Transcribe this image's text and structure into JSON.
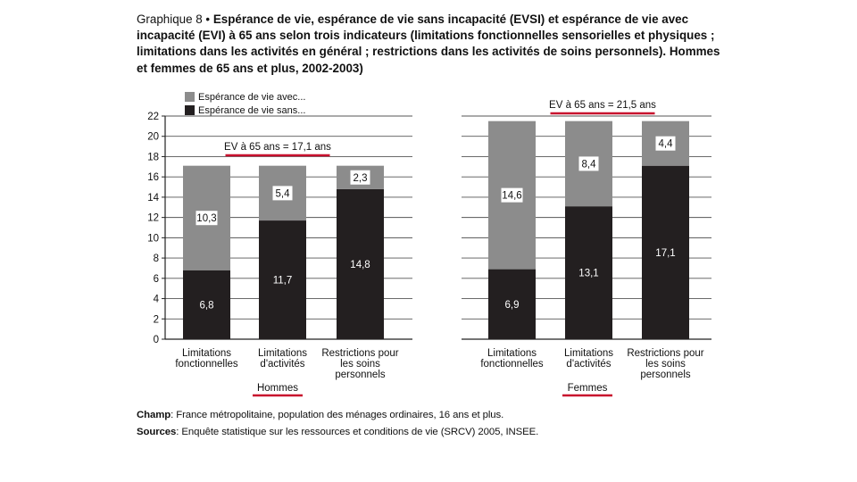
{
  "header": {
    "label": "Graphique 8 •",
    "text": "Espérance de vie, espérance de vie sans incapacité (EVSI) et espérance de vie avec incapacité (EVI) à 65 ans selon trois indicateurs (limitations fonctionnelles sensorielles et physiques ; limitations dans les activités en général ; restrictions dans les activités de soins personnels). Hommes et femmes de 65 ans et plus, 2002-2003)"
  },
  "chart_data": {
    "type": "bar",
    "stacked": true,
    "ylim": [
      0,
      22
    ],
    "yticks": [
      "0",
      "2",
      "4",
      "6",
      "8",
      "10",
      "12",
      "14",
      "16",
      "18",
      "20",
      "22"
    ],
    "grid": true,
    "legend_position": "top-left",
    "legend": [
      "Espérance de vie avec...",
      "Espérance de vie sans..."
    ],
    "colors": {
      "avec": "#8c8c8c",
      "sans": "#231f20"
    },
    "panels": [
      {
        "group_label": "Hommes",
        "ev_annotation": "EV à 65 ans = 17,1 ans",
        "categories": [
          [
            "Limitations",
            "fonctionnelles"
          ],
          [
            "Limitations",
            "d'activités"
          ],
          [
            "Restrictions pour",
            "les soins",
            "personnels"
          ]
        ],
        "series": [
          {
            "name": "Espérance de vie sans...",
            "values": [
              6.8,
              11.7,
              14.8
            ],
            "labels": [
              "6,8",
              "11,7",
              "14,8"
            ]
          },
          {
            "name": "Espérance de vie avec...",
            "values": [
              10.3,
              5.4,
              2.3
            ],
            "labels": [
              "10,3",
              "5,4",
              "2,3"
            ]
          }
        ]
      },
      {
        "group_label": "Femmes",
        "ev_annotation": "EV à 65 ans = 21,5 ans",
        "categories": [
          [
            "Limitations",
            "fonctionnelles"
          ],
          [
            "Limitations",
            "d'activités"
          ],
          [
            "Restrictions pour",
            "les soins",
            "personnels"
          ]
        ],
        "series": [
          {
            "name": "Espérance de vie sans...",
            "values": [
              6.9,
              13.1,
              17.1
            ],
            "labels": [
              "6,9",
              "13,1",
              "17,1"
            ]
          },
          {
            "name": "Espérance de vie avec...",
            "values": [
              14.6,
              8.4,
              4.4
            ],
            "labels": [
              "14,6",
              "8,4",
              "4,4"
            ]
          }
        ]
      }
    ]
  },
  "notes": {
    "champ_label": "Champ",
    "champ_text": ": France métropolitaine, population des ménages ordinaires, 16 ans et plus.",
    "sources_label": "Sources",
    "sources_text": ": Enquête statistique sur les ressources et conditions de vie (SRCV) 2005, INSEE."
  },
  "accent_color": "#c8102e"
}
